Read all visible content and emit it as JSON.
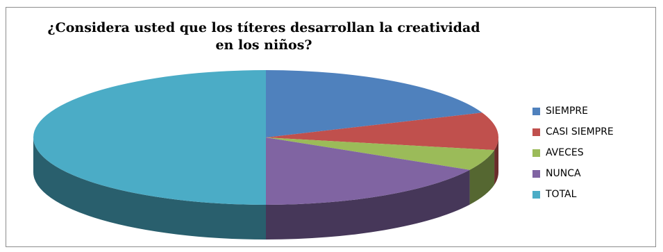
{
  "chart_data": {
    "type": "pie",
    "title": "¿Considera usted que los títeres desarrollan la creatividad en los niños?",
    "categories": [
      "SIEMPRE",
      "CASI SIEMPRE",
      "AVECES",
      "NUNCA",
      "TOTAL"
    ],
    "values": [
      19,
      9,
      5,
      17,
      50
    ],
    "colors": [
      "#4f81bd",
      "#c0504d",
      "#9bbb59",
      "#8064a2",
      "#4bacc6"
    ],
    "legend_position": "right"
  }
}
